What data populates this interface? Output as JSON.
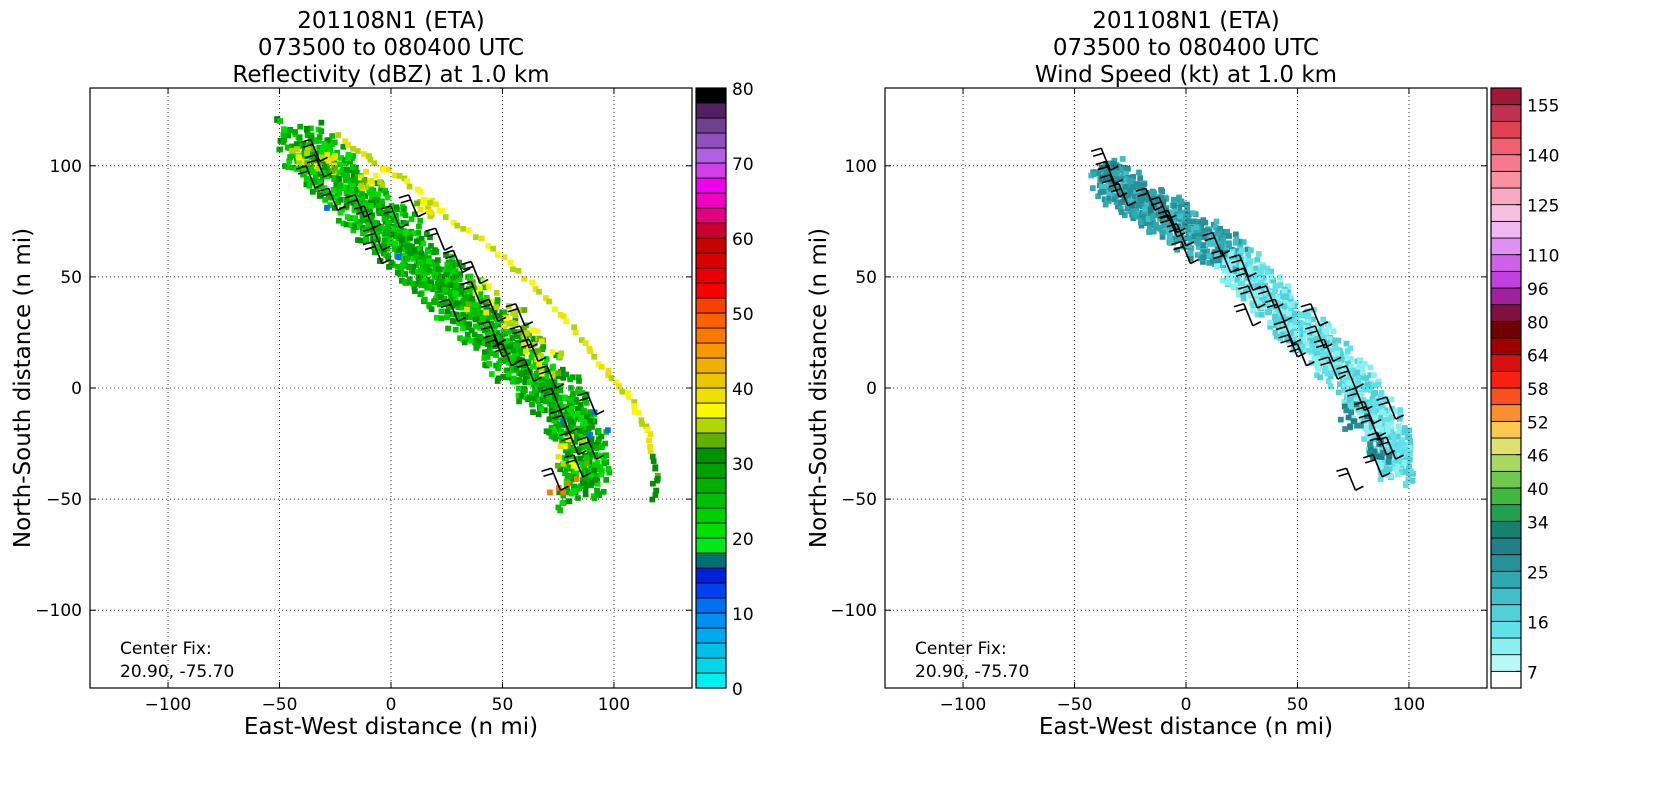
{
  "chart_data": [
    {
      "type": "heatmap",
      "title": [
        "201108N1 (ETA)",
        "073500 to 080400 UTC",
        "Reflectivity (dBZ) at 1.0 km"
      ],
      "xlabel": "East-West distance (n mi)",
      "ylabel": "North-South distance (n mi)",
      "xlim": [
        -135,
        135
      ],
      "ylim": [
        -135,
        135
      ],
      "xticks": [
        -100,
        -50,
        0,
        50,
        100
      ],
      "yticks": [
        -100,
        -50,
        0,
        50,
        100
      ],
      "xtick_labels": [
        "−100",
        "−50",
        "0",
        "50",
        "100"
      ],
      "ytick_labels": [
        "−100",
        "−50",
        "0",
        "50",
        "100"
      ],
      "grid": true,
      "annotation": [
        "Center Fix:",
        "20.90, -75.70"
      ],
      "colorbar": {
        "min": 0,
        "max": 80,
        "step": 2.5,
        "tick_values": [
          0,
          10,
          20,
          30,
          40,
          50,
          60,
          70,
          80
        ],
        "tick_labels": [
          "0",
          "10",
          "20",
          "30",
          "40",
          "50",
          "60",
          "70",
          "80"
        ],
        "colors": [
          "#00efef",
          "#00d8e8",
          "#00c0e8",
          "#00a8ee",
          "#0090f0",
          "#0070f0",
          "#0040f0",
          "#0020d8",
          "#007070",
          "#00e81c",
          "#00e000",
          "#00d000",
          "#00c000",
          "#00b000",
          "#00a000",
          "#009000",
          "#60b000",
          "#b0d800",
          "#f8f800",
          "#f0e000",
          "#e8c800",
          "#f0b000",
          "#f89800",
          "#f87800",
          "#f86000",
          "#f84000",
          "#f80000",
          "#e80000",
          "#d80000",
          "#c80000",
          "#c80030",
          "#e00080",
          "#f000c0",
          "#f000f0",
          "#d040e8",
          "#b060e0",
          "#9050c0",
          "#704090",
          "#502060",
          "#000000"
        ]
      },
      "swath": {
        "center_line": [
          [
            -44,
            112
          ],
          [
            -34,
            102
          ],
          [
            -24,
            92
          ],
          [
            -14,
            82
          ],
          [
            -4,
            72
          ],
          [
            6,
            62
          ],
          [
            16,
            52
          ],
          [
            26,
            42
          ],
          [
            36,
            32
          ],
          [
            46,
            22
          ],
          [
            56,
            12
          ],
          [
            66,
            2
          ],
          [
            76,
            -8
          ],
          [
            84,
            -22
          ],
          [
            88,
            -36
          ],
          [
            82,
            -48
          ]
        ],
        "half_width": 10,
        "blobs": [
          [
            -40,
            104,
            6
          ],
          [
            -30,
            100,
            4
          ],
          [
            -10,
            92,
            5
          ],
          [
            14,
            80,
            4
          ],
          [
            40,
            40,
            8
          ],
          [
            55,
            30,
            6
          ],
          [
            62,
            20,
            5
          ],
          [
            70,
            10,
            6
          ],
          [
            80,
            -30,
            7
          ]
        ],
        "arcs": [
          [
            [
              -24,
              112
            ],
            [
              -8,
              100
            ],
            [
              8,
              90
            ],
            [
              24,
              76
            ],
            [
              44,
              62
            ],
            [
              64,
              44
            ],
            [
              80,
              26
            ],
            [
              94,
              8
            ],
            [
              106,
              -6
            ],
            [
              114,
              -20
            ],
            [
              118,
              -38
            ],
            [
              116,
              -52
            ]
          ]
        ]
      },
      "barbs": [
        [
          -32,
          102
        ],
        [
          -30,
          95
        ],
        [
          -34,
          90
        ],
        [
          -24,
          80
        ],
        [
          -12,
          77
        ],
        [
          -8,
          72
        ],
        [
          -4,
          62
        ],
        [
          4,
          72
        ],
        [
          -4,
          56
        ],
        [
          12,
          77
        ],
        [
          24,
          62
        ],
        [
          32,
          52
        ],
        [
          40,
          47
        ],
        [
          40,
          38
        ],
        [
          30,
          30
        ],
        [
          48,
          30
        ],
        [
          48,
          20
        ],
        [
          50,
          14
        ],
        [
          54,
          10
        ],
        [
          60,
          28
        ],
        [
          62,
          18
        ],
        [
          66,
          12
        ],
        [
          64,
          3
        ],
        [
          74,
          0
        ],
        [
          76,
          -10
        ],
        [
          80,
          -20
        ],
        [
          84,
          -30
        ],
        [
          86,
          -40
        ],
        [
          76,
          -46
        ],
        [
          92,
          -12
        ],
        [
          92,
          -32
        ]
      ]
    },
    {
      "type": "heatmap",
      "title": [
        "201108N1 (ETA)",
        "073500 to 080400 UTC",
        "Wind Speed (kt) at 1.0 km"
      ],
      "xlabel": "East-West distance (n mi)",
      "ylabel": "North-South distance (n mi)",
      "xlim": [
        -135,
        135
      ],
      "ylim": [
        -135,
        135
      ],
      "xticks": [
        -100,
        -50,
        0,
        50,
        100
      ],
      "yticks": [
        -100,
        -50,
        0,
        50,
        100
      ],
      "xtick_labels": [
        "−100",
        "−50",
        "0",
        "50",
        "100"
      ],
      "ytick_labels": [
        "−100",
        "−50",
        "0",
        "50",
        "100"
      ],
      "grid": true,
      "annotation": [
        "Center Fix:",
        "20.90, -75.70"
      ],
      "colorbar": {
        "boundaries": [
          4,
          7,
          10,
          13,
          16,
          19,
          22,
          25,
          28,
          31,
          34,
          37,
          40,
          43,
          46,
          49,
          52,
          55,
          58,
          61,
          64,
          72,
          80,
          88,
          96,
          104,
          110,
          116,
          122,
          125,
          130,
          135,
          140,
          145,
          150,
          155,
          160
        ],
        "tick_values": [
          7,
          16,
          25,
          34,
          40,
          46,
          52,
          58,
          64,
          80,
          96,
          110,
          125,
          140,
          155
        ],
        "tick_labels": [
          "7",
          "16",
          "25",
          "34",
          "40",
          "46",
          "52",
          "58",
          "64",
          "80",
          "96",
          "110",
          "125",
          "140",
          "155"
        ],
        "colors": [
          "#ffffff",
          "#b8f8f8",
          "#88f0f0",
          "#60e0e8",
          "#50d0d8",
          "#40c0c8",
          "#30a8b0",
          "#289098",
          "#208088",
          "#188070",
          "#20a050",
          "#40b840",
          "#70c850",
          "#a8d860",
          "#e0e070",
          "#f8c850",
          "#f89030",
          "#f85020",
          "#f82010",
          "#d81010",
          "#a00000",
          "#700000",
          "#801040",
          "#a020a0",
          "#c040e0",
          "#d060e8",
          "#e090f0",
          "#f0b8f0",
          "#f8c0e0",
          "#f8a8c0",
          "#f890a0",
          "#f87890",
          "#f06070",
          "#e04050",
          "#c03050",
          "#a01838"
        ]
      },
      "swath": {
        "center_line": [
          [
            -38,
            96
          ],
          [
            -28,
            86
          ],
          [
            -16,
            80
          ],
          [
            -6,
            74
          ],
          [
            6,
            66
          ],
          [
            18,
            58
          ],
          [
            28,
            48
          ],
          [
            38,
            38
          ],
          [
            48,
            28
          ],
          [
            58,
            18
          ],
          [
            68,
            8
          ],
          [
            78,
            -4
          ],
          [
            86,
            -16
          ],
          [
            92,
            -28
          ],
          [
            94,
            -38
          ]
        ],
        "half_width": 8,
        "blobs": [
          [
            -36,
            96,
            4
          ],
          [
            -24,
            86,
            5
          ],
          [
            -14,
            82,
            4
          ],
          [
            74,
            -14,
            6
          ],
          [
            86,
            -30,
            5
          ]
        ],
        "arcs": []
      },
      "barbs": [
        [
          -34,
          98
        ],
        [
          -32,
          92
        ],
        [
          -30,
          86
        ],
        [
          -26,
          82
        ],
        [
          -14,
          80
        ],
        [
          -8,
          76
        ],
        [
          -4,
          70
        ],
        [
          0,
          64
        ],
        [
          2,
          56
        ],
        [
          -4,
          68
        ],
        [
          16,
          60
        ],
        [
          20,
          52
        ],
        [
          28,
          50
        ],
        [
          30,
          44
        ],
        [
          32,
          36
        ],
        [
          30,
          28
        ],
        [
          40,
          36
        ],
        [
          44,
          30
        ],
        [
          48,
          20
        ],
        [
          50,
          14
        ],
        [
          54,
          10
        ],
        [
          60,
          28
        ],
        [
          62,
          18
        ],
        [
          66,
          12
        ],
        [
          68,
          4
        ],
        [
          76,
          0
        ],
        [
          80,
          -10
        ],
        [
          84,
          -16
        ],
        [
          86,
          -22
        ],
        [
          90,
          -30
        ],
        [
          88,
          -40
        ],
        [
          76,
          -46
        ],
        [
          94,
          -14
        ],
        [
          94,
          -32
        ]
      ]
    }
  ]
}
